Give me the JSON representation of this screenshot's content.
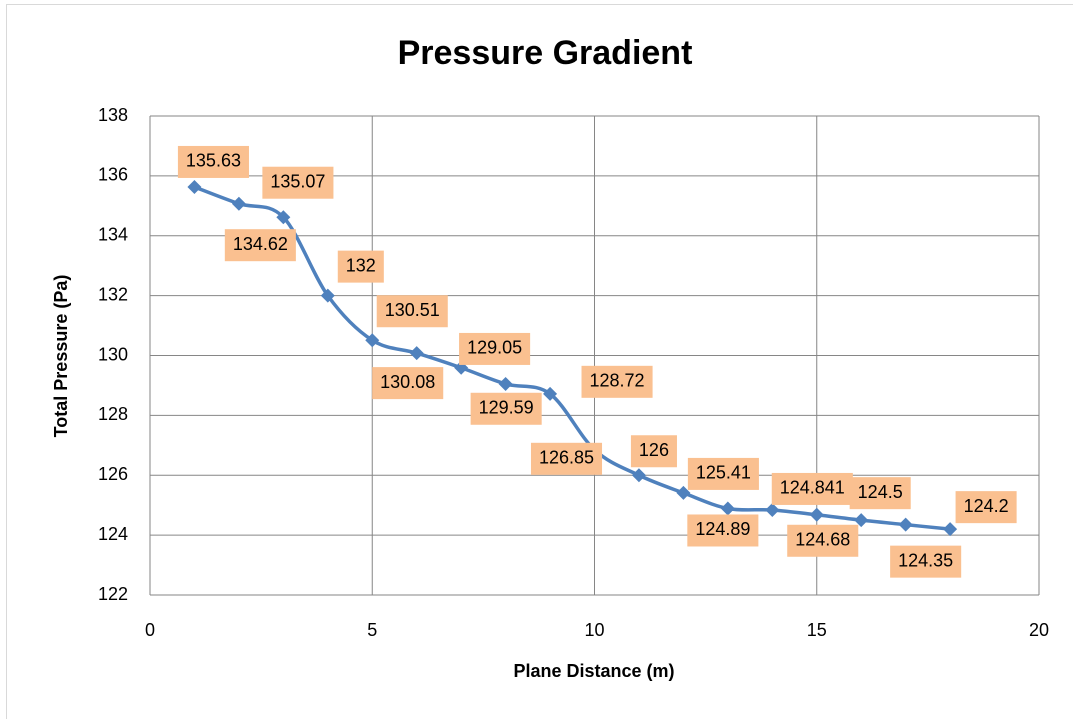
{
  "chart_data": {
    "type": "line",
    "title": "Pressure Gradient",
    "x_label": "Plane Distance (m)",
    "y_label": "Total Pressure (Pa)",
    "series": [
      {
        "name": "Total Pressure",
        "color": "#4f81bd",
        "x": [
          1,
          2,
          3,
          4,
          5,
          6,
          7,
          8,
          9,
          10,
          11,
          12,
          13,
          14,
          15,
          16,
          17,
          18
        ],
        "values": [
          135.63,
          135.07,
          134.62,
          132,
          130.51,
          130.08,
          129.59,
          129.05,
          128.72,
          126.85,
          126,
          125.41,
          124.89,
          124.841,
          124.68,
          124.5,
          124.35,
          124.2
        ]
      }
    ],
    "label_color": "#fac090",
    "xlim": [
      0,
      20
    ],
    "xticks": [
      0,
      5,
      10,
      15,
      20
    ],
    "ylim": [
      122,
      138
    ],
    "yticks": [
      122,
      124,
      126,
      128,
      130,
      132,
      134,
      136,
      138
    ],
    "grid": true
  }
}
